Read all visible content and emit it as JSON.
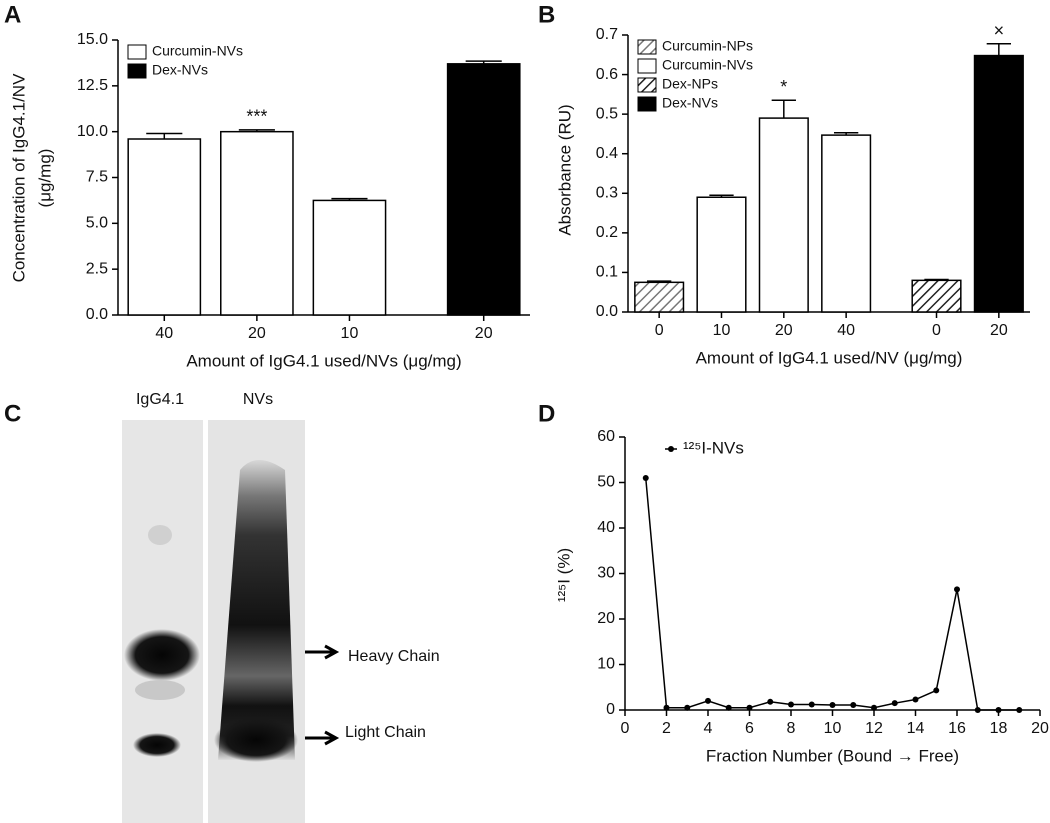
{
  "chart_data": [
    {
      "type": "bar",
      "panel": "A",
      "categories": [
        "40",
        "20",
        "10",
        "20"
      ],
      "series": [
        {
          "name": "Curcumin-NVs",
          "color": "#ffffff",
          "hatch": false,
          "values": [
            9.6,
            10.0,
            6.25,
            null
          ],
          "errors": [
            0.3,
            0.1,
            0.1,
            null
          ]
        },
        {
          "name": "Dex-NVs",
          "color": "#000000",
          "hatch": false,
          "values": [
            null,
            null,
            null,
            13.7
          ],
          "errors": [
            null,
            null,
            null,
            0.15
          ]
        }
      ],
      "annotations": [
        null,
        "***",
        null,
        null
      ],
      "xlabel": "Amount of IgG4.1 used/NVs (μg/mg)",
      "ylabel": [
        "Concentration of IgG4.1/NV",
        "(μg/mg)"
      ],
      "ylim": [
        0,
        15
      ],
      "yticks": [
        {
          "value": 0,
          "label": "0.0"
        },
        2.5,
        {
          "value": 5,
          "label": "5.0"
        },
        7.5,
        {
          "value": 10,
          "label": "10.0"
        },
        12.5,
        {
          "value": 15,
          "label": "15.0"
        }
      ],
      "legend": "upper left"
    },
    {
      "type": "bar",
      "panel": "B",
      "categories": [
        "0",
        "10",
        "20",
        "40",
        "0",
        "20"
      ],
      "series": [
        {
          "name": "Curcumin-NPs",
          "color": "#777777",
          "hatch": true,
          "values": [
            0.075,
            null,
            null,
            null,
            null,
            null
          ],
          "errors": [
            0.003,
            null,
            null,
            null,
            null,
            null
          ]
        },
        {
          "name": "Curcumin-NVs",
          "color": "#ffffff",
          "hatch": false,
          "values": [
            null,
            0.29,
            0.49,
            0.447,
            null,
            null
          ],
          "errors": [
            null,
            0.005,
            0.045,
            0.006,
            null,
            null
          ]
        },
        {
          "name": "Dex-NPs",
          "color": "#222222",
          "hatch": true,
          "values": [
            null,
            null,
            null,
            null,
            0.08,
            null
          ],
          "errors": [
            null,
            null,
            null,
            null,
            0.002,
            null
          ]
        },
        {
          "name": "Dex-NVs",
          "color": "#000000",
          "hatch": false,
          "values": [
            null,
            null,
            null,
            null,
            null,
            0.648
          ],
          "errors": [
            null,
            null,
            null,
            null,
            null,
            0.03
          ]
        }
      ],
      "annotations": [
        null,
        null,
        "*",
        null,
        null,
        "×"
      ],
      "xlabel": "Amount of IgG4.1 used/NV (μg/mg)",
      "ylabel": [
        "Absorbance (RU)"
      ],
      "ylim": [
        0,
        0.7
      ],
      "yticks": [
        {
          "value": 0,
          "label": "0.0"
        },
        0.1,
        0.2,
        0.3,
        0.4,
        0.5,
        0.6,
        0.7
      ],
      "legend": "upper left"
    },
    {
      "type": "line",
      "panel": "D",
      "x": [
        1,
        2,
        3,
        4,
        5,
        6,
        7,
        8,
        9,
        10,
        11,
        12,
        13,
        14,
        15,
        16,
        17,
        18,
        19
      ],
      "series": [
        {
          "name": "¹²⁵I-NVs",
          "color": "#000000",
          "values": [
            51,
            0.5,
            0.5,
            2,
            0.5,
            0.5,
            1.8,
            1.2,
            1.2,
            1.1,
            1.1,
            0.5,
            1.5,
            2.3,
            4.3,
            26.5,
            0,
            0,
            0
          ]
        }
      ],
      "xlabel": "Fraction Number (Bound → Free)",
      "ylabel": [
        "¹²⁵I (%)"
      ],
      "xlim": [
        0,
        20
      ],
      "xticks": [
        0,
        2,
        4,
        6,
        8,
        10,
        12,
        14,
        16,
        18,
        20
      ],
      "ylim": [
        0,
        60
      ],
      "yticks": [
        0,
        10,
        20,
        30,
        40,
        50,
        60
      ],
      "legend": "upper left"
    }
  ],
  "blot": {
    "panel": "C",
    "lanes": [
      "IgG4.1",
      "NVs"
    ],
    "bands": [
      "Heavy Chain",
      "Light Chain"
    ]
  }
}
